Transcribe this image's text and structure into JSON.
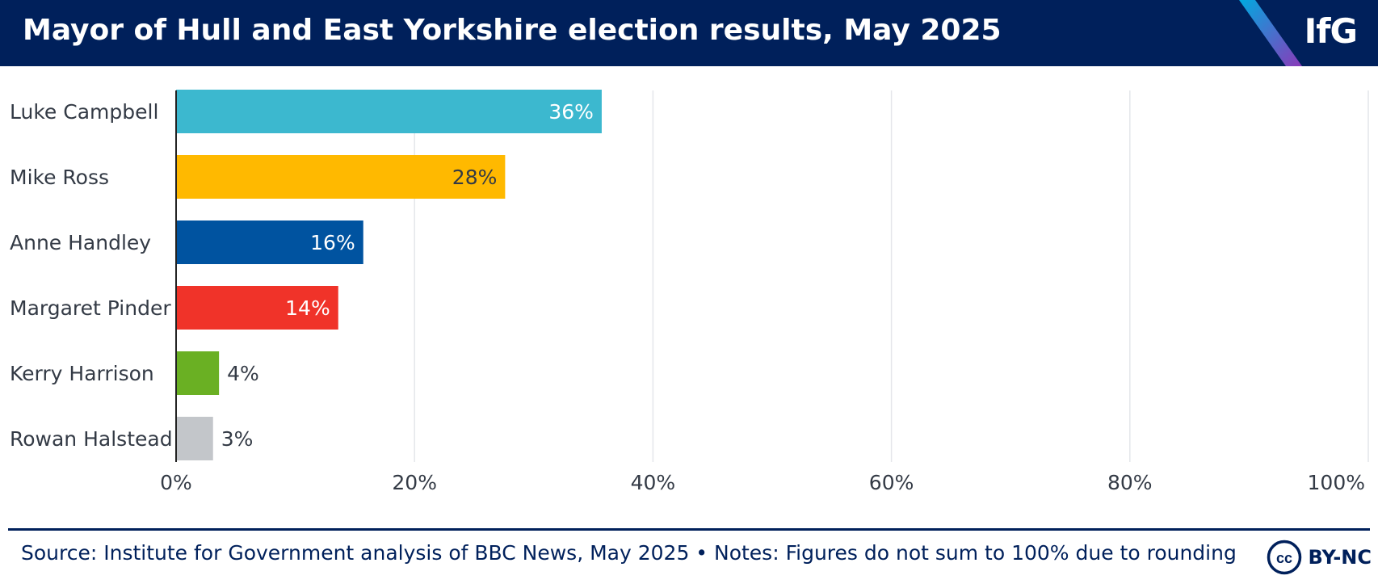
{
  "header": {
    "title": "Mayor of Hull and East Yorkshire election results, May 2025",
    "logo": "IfG",
    "bg_color": "#00205b"
  },
  "chart_data": {
    "type": "bar",
    "orientation": "horizontal",
    "title": "Mayor of Hull and East Yorkshire election results, May 2025",
    "categories": [
      "Luke Campbell",
      "Mike Ross",
      "Anne Handley",
      "Margaret Pinder",
      "Kerry Harrison",
      "Rowan Halstead"
    ],
    "values": [
      35.7,
      27.6,
      15.7,
      13.6,
      3.6,
      3.1
    ],
    "value_labels": [
      "36%",
      "28%",
      "16%",
      "14%",
      "4%",
      "3%"
    ],
    "colors": [
      "#3cb8cf",
      "#ffb900",
      "#0053a0",
      "#f03329",
      "#6ab023",
      "#c3c6ca"
    ],
    "xlim": [
      0,
      100
    ],
    "x_ticks": [
      "0%",
      "20%",
      "40%",
      "60%",
      "80%",
      "100%"
    ],
    "grid": true,
    "xlabel": "",
    "ylabel": ""
  },
  "footer": {
    "source": "Source: Institute for Government analysis of BBC News, May 2025 • Notes: Figures do not sum to 100% due to rounding",
    "license_icon": "creative-commons-icon",
    "license": "BY-NC"
  }
}
